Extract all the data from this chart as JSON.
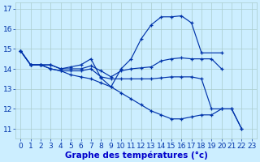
{
  "background_color": "#cceeff",
  "grid_color": "#aacccc",
  "line_color": "#0033aa",
  "xlabel": "Graphe des températures (°c)",
  "xlabel_color": "#0000cc",
  "xlabel_fontsize": 7.5,
  "tick_fontsize": 6.5,
  "xlim": [
    -0.5,
    23.5
  ],
  "ylim": [
    10.5,
    17.3
  ],
  "yticks": [
    11,
    12,
    13,
    14,
    15,
    16,
    17
  ],
  "xticks": [
    0,
    1,
    2,
    3,
    4,
    5,
    6,
    7,
    8,
    9,
    10,
    11,
    12,
    13,
    14,
    15,
    16,
    17,
    18,
    19,
    20,
    21,
    22,
    23
  ],
  "series": [
    {
      "x": [
        0,
        1,
        2,
        3,
        4,
        5,
        6,
        7,
        8,
        9,
        10,
        11,
        12,
        13,
        14,
        15,
        16,
        17,
        18,
        20
      ],
      "y": [
        14.9,
        14.2,
        14.2,
        14.2,
        14.0,
        14.1,
        14.2,
        14.5,
        13.55,
        13.1,
        14.0,
        14.5,
        15.5,
        16.2,
        16.6,
        16.6,
        16.65,
        16.3,
        14.8,
        14.8
      ]
    },
    {
      "x": [
        0,
        1,
        2,
        3,
        4,
        5,
        6,
        7,
        8,
        9,
        10,
        11,
        12,
        13,
        14,
        15,
        16,
        17,
        18,
        19,
        20
      ],
      "y": [
        14.9,
        14.2,
        14.2,
        14.2,
        14.0,
        14.0,
        14.0,
        14.15,
        13.9,
        13.6,
        13.9,
        14.0,
        14.05,
        14.1,
        14.4,
        14.5,
        14.55,
        14.5,
        14.5,
        14.5,
        14.0
      ]
    },
    {
      "x": [
        0,
        1,
        2,
        3,
        4,
        5,
        6,
        7,
        8,
        9,
        10,
        11,
        12,
        13,
        14,
        15,
        16,
        17,
        18,
        19,
        20,
        21,
        22
      ],
      "y": [
        14.9,
        14.2,
        14.2,
        14.0,
        13.9,
        13.9,
        13.9,
        14.0,
        13.6,
        13.5,
        13.5,
        13.5,
        13.5,
        13.5,
        13.55,
        13.6,
        13.6,
        13.6,
        13.5,
        12.0,
        12.0,
        12.0,
        11.0
      ]
    },
    {
      "x": [
        0,
        1,
        2,
        3,
        4,
        5,
        6,
        7,
        8,
        9,
        10,
        11,
        12,
        13,
        14,
        15,
        16,
        17,
        18,
        19,
        20,
        21,
        22
      ],
      "y": [
        14.9,
        14.2,
        14.2,
        14.0,
        13.9,
        13.7,
        13.6,
        13.5,
        13.3,
        13.1,
        12.8,
        12.5,
        12.2,
        11.9,
        11.7,
        11.5,
        11.5,
        11.6,
        11.7,
        11.7,
        12.0,
        12.0,
        11.0
      ]
    }
  ]
}
